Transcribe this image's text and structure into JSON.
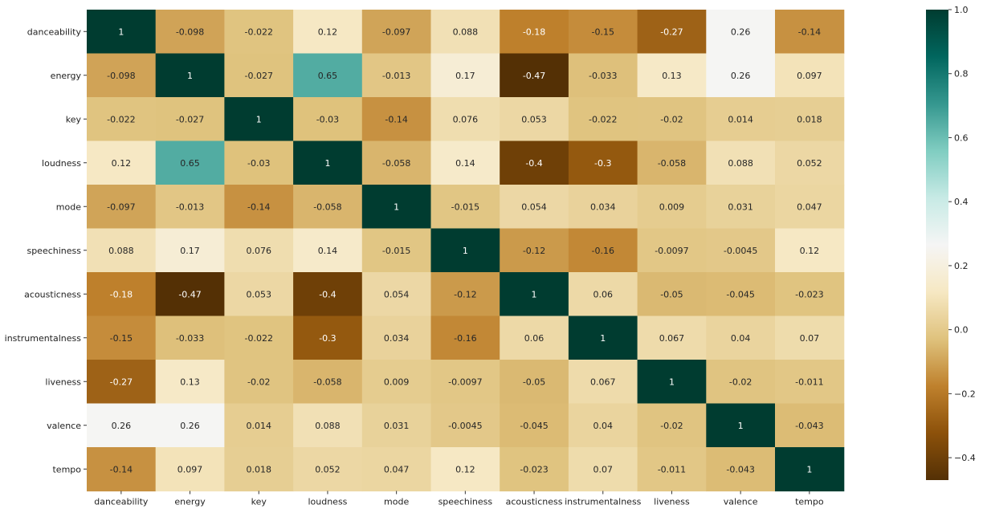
{
  "chart_data": {
    "type": "heatmap",
    "title": "",
    "xlabel": "",
    "ylabel": "",
    "labels": [
      "danceability",
      "energy",
      "key",
      "loudness",
      "mode",
      "speechiness",
      "acousticness",
      "instrumentalness",
      "liveness",
      "valence",
      "tempo"
    ],
    "matrix": [
      [
        "1",
        "-0.098",
        "-0.022",
        "0.12",
        "-0.097",
        "0.088",
        "-0.18",
        "-0.15",
        "-0.27",
        "0.26",
        "-0.14"
      ],
      [
        "-0.098",
        "1",
        "-0.027",
        "0.65",
        "-0.013",
        "0.17",
        "-0.47",
        "-0.033",
        "0.13",
        "0.26",
        "0.097"
      ],
      [
        "-0.022",
        "-0.027",
        "1",
        "-0.03",
        "-0.14",
        "0.076",
        "0.053",
        "-0.022",
        "-0.02",
        "0.014",
        "0.018"
      ],
      [
        "0.12",
        "0.65",
        "-0.03",
        "1",
        "-0.058",
        "0.14",
        "-0.4",
        "-0.3",
        "-0.058",
        "0.088",
        "0.052"
      ],
      [
        "-0.097",
        "-0.013",
        "-0.14",
        "-0.058",
        "1",
        "-0.015",
        "0.054",
        "0.034",
        "0.009",
        "0.031",
        "0.047"
      ],
      [
        "0.088",
        "0.17",
        "0.076",
        "0.14",
        "-0.015",
        "1",
        "-0.12",
        "-0.16",
        "-0.0097",
        "-0.0045",
        "0.12"
      ],
      [
        "-0.18",
        "-0.47",
        "0.053",
        "-0.4",
        "0.054",
        "-0.12",
        "1",
        "0.06",
        "-0.05",
        "-0.045",
        "-0.023"
      ],
      [
        "-0.15",
        "-0.033",
        "-0.022",
        "-0.3",
        "0.034",
        "-0.16",
        "0.06",
        "1",
        "0.067",
        "0.04",
        "0.07"
      ],
      [
        "-0.27",
        "0.13",
        "-0.02",
        "-0.058",
        "0.009",
        "-0.0097",
        "-0.05",
        "0.067",
        "1",
        "-0.02",
        "-0.011"
      ],
      [
        "0.26",
        "0.26",
        "0.014",
        "0.088",
        "0.031",
        "-0.0045",
        "-0.045",
        "0.04",
        "-0.02",
        "1",
        "-0.043"
      ],
      [
        "-0.14",
        "0.097",
        "0.018",
        "0.052",
        "0.047",
        "0.12",
        "-0.023",
        "0.07",
        "-0.011",
        "-0.043",
        "1"
      ]
    ],
    "colormap": "BrBG",
    "vmin": -0.47,
    "vmax": 1.0,
    "colorbar_ticks": [
      "1.0",
      "0.8",
      "0.6",
      "0.4",
      "0.2",
      "0.0",
      "−0.2",
      "−0.4"
    ],
    "colorbar_tick_values": [
      1.0,
      0.8,
      0.6,
      0.4,
      0.2,
      0.0,
      -0.2,
      -0.4
    ],
    "annotations": true,
    "grid": false
  }
}
